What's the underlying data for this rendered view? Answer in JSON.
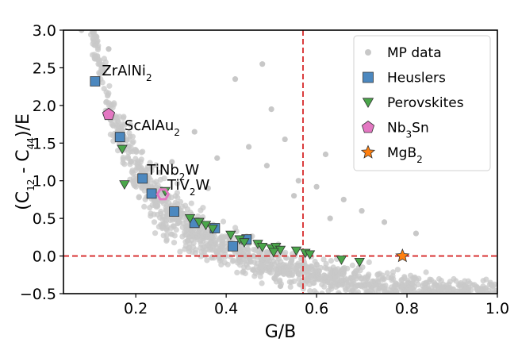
{
  "chart_data": {
    "type": "scatter",
    "xlabel": "G/B",
    "ylabel_parts": [
      {
        "t": "(C"
      },
      {
        "t": "12",
        "sub": true
      },
      {
        "t": " - C"
      },
      {
        "t": "44",
        "sub": true
      },
      {
        "t": ")/E"
      }
    ],
    "xlim": [
      0.04,
      1.0
    ],
    "ylim": [
      -0.5,
      3.0
    ],
    "xticks": [
      0.2,
      0.4,
      0.6,
      0.8,
      1.0
    ],
    "xtick_labels": [
      "0.2",
      "0.4",
      "0.6",
      "0.8",
      "1.0"
    ],
    "yticks": [
      -0.5,
      0.0,
      0.5,
      1.0,
      1.5,
      2.0,
      2.5,
      3.0
    ],
    "ytick_labels": [
      "−0.5",
      "0.0",
      "0.5",
      "1.0",
      "1.5",
      "2.0",
      "2.5",
      "3.0"
    ],
    "grid": false,
    "reference_lines": [
      {
        "orientation": "vertical",
        "x": 0.57,
        "color": "#d62728",
        "style": "dashed"
      },
      {
        "orientation": "horizontal",
        "y": 0.0,
        "color": "#d62728",
        "style": "dashed"
      }
    ],
    "legend": {
      "placement": "top-right",
      "entries": [
        {
          "series": "mp",
          "parts": [
            {
              "t": "MP data"
            }
          ]
        },
        {
          "series": "heuslers",
          "parts": [
            {
              "t": "Heuslers"
            }
          ]
        },
        {
          "series": "perovskites",
          "parts": [
            {
              "t": "Perovskites"
            }
          ]
        },
        {
          "series": "nb3sn",
          "parts": [
            {
              "t": "Nb"
            },
            {
              "t": "3",
              "sub": true
            },
            {
              "t": "Sn"
            }
          ]
        },
        {
          "series": "mgb2",
          "parts": [
            {
              "t": "MgB"
            },
            {
              "t": "2",
              "sub": true
            }
          ]
        }
      ]
    },
    "series": [
      {
        "key": "mp",
        "name": "MP data",
        "marker": "circle",
        "color": "#c8c8c8",
        "trend": {
          "form": "y = a/x + b",
          "a": 0.42,
          "b": -0.95
        },
        "outliers": [
          [
            0.08,
            3.0
          ],
          [
            0.14,
            2.75
          ],
          [
            0.11,
            2.65
          ],
          [
            0.42,
            2.35
          ],
          [
            0.48,
            2.55
          ],
          [
            0.5,
            1.95
          ],
          [
            0.53,
            1.55
          ],
          [
            0.62,
            1.35
          ],
          [
            0.49,
            1.2
          ],
          [
            0.56,
            1.0
          ],
          [
            0.66,
            0.75
          ],
          [
            0.7,
            0.6
          ],
          [
            0.6,
            0.92
          ],
          [
            0.45,
            1.45
          ],
          [
            0.33,
            1.65
          ],
          [
            0.38,
            1.3
          ],
          [
            0.28,
            1.25
          ],
          [
            0.55,
            0.8
          ],
          [
            0.75,
            0.45
          ],
          [
            0.82,
            0.3
          ],
          [
            0.52,
            -0.4
          ],
          [
            0.36,
            0.9
          ],
          [
            0.63,
            0.5
          ]
        ]
      },
      {
        "key": "heuslers",
        "name": "Heuslers",
        "marker": "square",
        "color": "#4c88bf",
        "points": [
          [
            0.11,
            2.32
          ],
          [
            0.165,
            1.58
          ],
          [
            0.215,
            1.03
          ],
          [
            0.235,
            0.83
          ],
          [
            0.285,
            0.59
          ],
          [
            0.33,
            0.44
          ],
          [
            0.375,
            0.37
          ],
          [
            0.415,
            0.13
          ],
          [
            0.445,
            0.22
          ]
        ]
      },
      {
        "key": "perovskites",
        "name": "Perovskites",
        "marker": "triangle-down",
        "color": "#4aa64a",
        "points": [
          [
            0.17,
            1.42
          ],
          [
            0.175,
            0.95
          ],
          [
            0.265,
            0.86
          ],
          [
            0.32,
            0.5
          ],
          [
            0.34,
            0.45
          ],
          [
            0.355,
            0.41
          ],
          [
            0.37,
            0.36
          ],
          [
            0.41,
            0.28
          ],
          [
            0.43,
            0.22
          ],
          [
            0.44,
            0.18
          ],
          [
            0.47,
            0.16
          ],
          [
            0.48,
            0.12
          ],
          [
            0.5,
            0.1
          ],
          [
            0.51,
            0.12
          ],
          [
            0.52,
            0.08
          ],
          [
            0.555,
            0.07
          ],
          [
            0.575,
            0.04
          ],
          [
            0.585,
            0.02
          ],
          [
            0.655,
            -0.05
          ],
          [
            0.695,
            -0.08
          ],
          [
            0.505,
            0.05
          ]
        ]
      },
      {
        "key": "nb3sn",
        "name": "Nb3Sn",
        "marker": "pentagon",
        "color": "#e377c2",
        "points": [
          [
            0.14,
            1.88
          ]
        ]
      },
      {
        "key": "mgb2",
        "name": "MgB2",
        "marker": "star",
        "color": "#ff7f0e",
        "points": [
          [
            0.79,
            0.0
          ]
        ]
      },
      {
        "key": "tiv2w",
        "name": "",
        "marker": "hexagon-outline",
        "color": "#e377c2",
        "points": [
          [
            0.26,
            0.82
          ]
        ]
      }
    ],
    "annotations": [
      {
        "x": 0.125,
        "y": 2.4,
        "parts": [
          {
            "t": "ZrAlNi"
          },
          {
            "t": "2",
            "sub": true
          }
        ]
      },
      {
        "x": 0.175,
        "y": 1.67,
        "parts": [
          {
            "t": "ScAlAu"
          },
          {
            "t": "2",
            "sub": true
          }
        ]
      },
      {
        "x": 0.225,
        "y": 1.08,
        "parts": [
          {
            "t": "TiNb"
          },
          {
            "t": "2",
            "sub": true
          },
          {
            "t": "W"
          }
        ]
      },
      {
        "x": 0.27,
        "y": 0.88,
        "parts": [
          {
            "t": "TiV"
          },
          {
            "t": "2",
            "sub": true
          },
          {
            "t": "W"
          }
        ]
      }
    ]
  }
}
